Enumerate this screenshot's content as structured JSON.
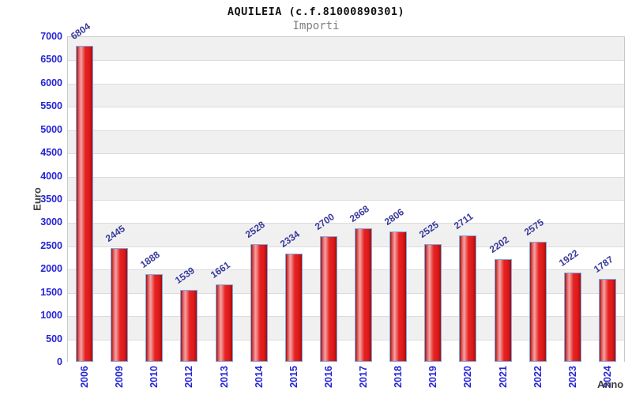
{
  "chart_data": {
    "type": "bar",
    "title": "AQUILEIA (c.f.81000890301)",
    "subtitle": "Importi",
    "xlabel": "Anno",
    "ylabel": "Euro",
    "ylim": [
      0,
      7000
    ],
    "ytick_step": 500,
    "categories": [
      "2006",
      "2009",
      "2010",
      "2012",
      "2013",
      "2014",
      "2015",
      "2016",
      "2017",
      "2018",
      "2019",
      "2020",
      "2021",
      "2022",
      "2023",
      "2024"
    ],
    "values": [
      6804,
      2445,
      1888,
      1539,
      1661,
      2528,
      2334,
      2700,
      2868,
      2806,
      2525,
      2711,
      2202,
      2575,
      1922,
      1787
    ],
    "legend": "none",
    "grid": "horizontal-bands-500",
    "colors": {
      "bar_border": "#79abe2",
      "bar_fill_dark": "#a01010",
      "bar_fill_highlight": "#f5a3a3",
      "bar_fill_main": "#e62222",
      "axis_tick_label": "#2424d6",
      "value_label": "#39399b",
      "axis_title": "#3f3f3f",
      "band_gray": "#f0f0f0",
      "band_white": "#ffffff",
      "plot_border": "#c9c9c9",
      "title_color": "#111111",
      "subtitle_color": "#7d7d7d"
    }
  }
}
